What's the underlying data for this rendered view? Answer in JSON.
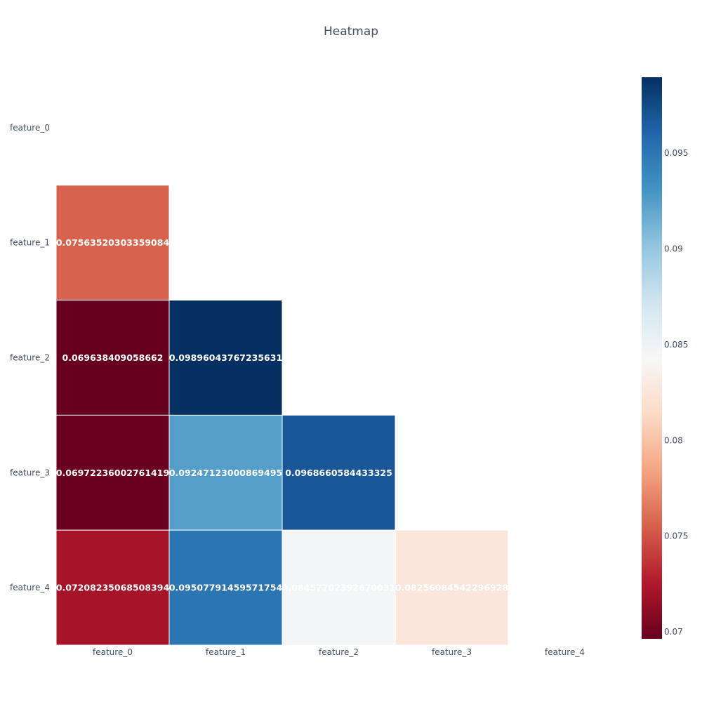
{
  "chart_data": {
    "type": "heatmap",
    "title": "Heatmap",
    "x_categories": [
      "feature_0",
      "feature_1",
      "feature_2",
      "feature_3",
      "feature_4"
    ],
    "y_categories": [
      "feature_0",
      "feature_1",
      "feature_2",
      "feature_3",
      "feature_4"
    ],
    "values": [
      [
        null,
        null,
        null,
        null,
        null
      ],
      [
        0.07563520303359084,
        null,
        null,
        null,
        null
      ],
      [
        0.069638409058662,
        0.09896043767235631,
        null,
        null,
        null
      ],
      [
        0.06972236002761419,
        0.09247123000869495,
        0.0968660584433325,
        null,
        null
      ],
      [
        0.07208235068508394,
        0.09507791459571754,
        0.08457702392670031,
        0.08256084542296928,
        null
      ]
    ],
    "value_labels": [
      [
        null,
        null,
        null,
        null,
        null
      ],
      [
        "0.07563520303359084",
        null,
        null,
        null,
        null
      ],
      [
        "0.069638409058662",
        "0.09896043767235631",
        null,
        null,
        null
      ],
      [
        "0.06972236002761419",
        "0.09247123000869495",
        "0.0968660584433325",
        null,
        null
      ],
      [
        "0.07208235068508394",
        "0.09507791459571754",
        "0.08457702392670031",
        "0.08256084542296928",
        null
      ]
    ],
    "colorscale": "RdBu",
    "zmin": 0.069638409058662,
    "zmax": 0.09896043767235631,
    "colorbar": {
      "ticks": [
        0.07,
        0.075,
        0.08,
        0.085,
        0.09,
        0.095
      ],
      "tick_labels": [
        "0.07",
        "0.075",
        "0.08",
        "0.085",
        "0.09",
        "0.095"
      ]
    },
    "grid": false,
    "legend": "colorbar-right"
  }
}
